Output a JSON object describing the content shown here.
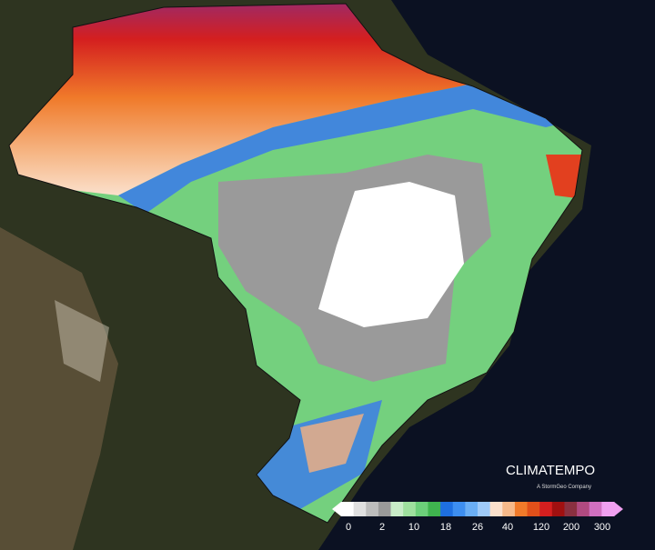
{
  "logo": {
    "name": "CLIMATEMPO",
    "tagline": "A StormGeo Company"
  },
  "legend": {
    "ticks": [
      0,
      2,
      10,
      18,
      26,
      40,
      120,
      200,
      300
    ]
  }
}
